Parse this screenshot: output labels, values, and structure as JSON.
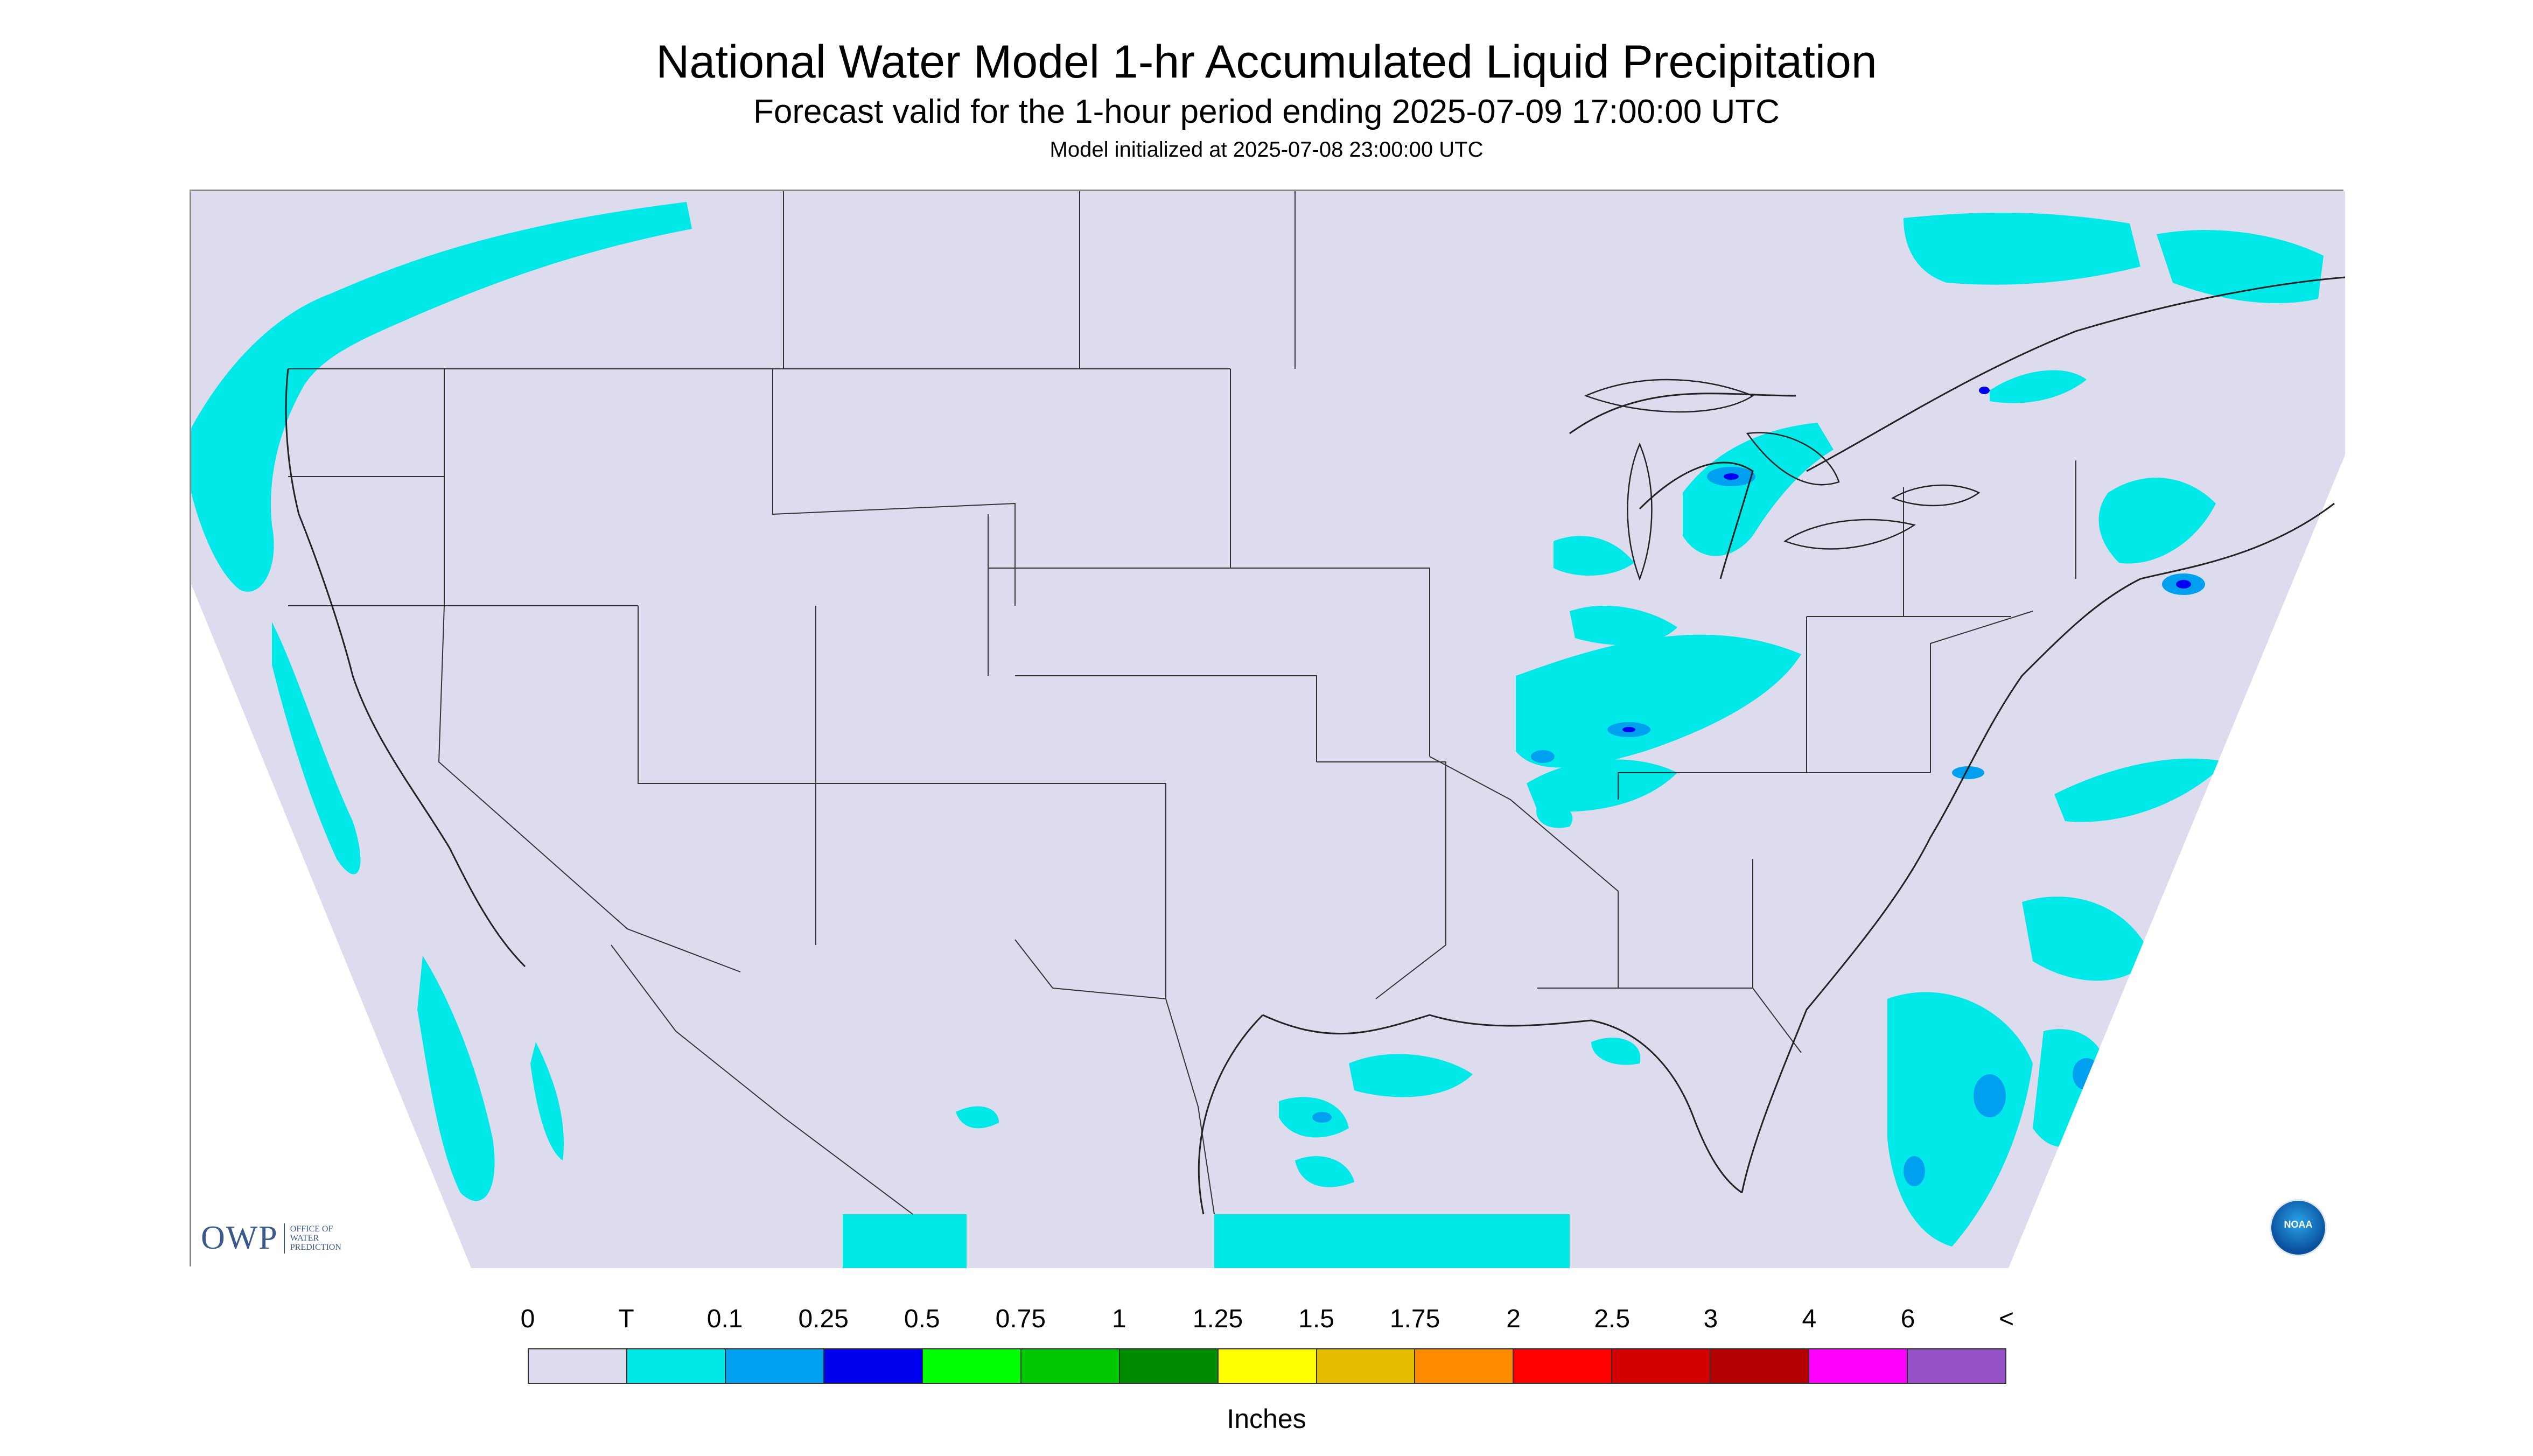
{
  "title": "National Water Model 1-hr Accumulated Liquid Precipitation",
  "subtitle": "Forecast valid for the 1-hour period ending 2025-07-09 17:00:00 UTC",
  "init_line": "Model initialized at 2025-07-08 23:00:00 UTC",
  "logos": {
    "owp_main": "OWP",
    "owp_small": "OFFICE OF WATER PREDICTION",
    "noaa": "NOAA"
  },
  "legend": {
    "units": "Inches",
    "labels": [
      "0",
      "T",
      "0.1",
      "0.25",
      "0.5",
      "0.75",
      "1",
      "1.25",
      "1.5",
      "1.75",
      "2",
      "2.5",
      "3",
      "4",
      "6",
      "<"
    ],
    "colors": [
      "#dcdcee",
      "#00e8e8",
      "#00a0f0",
      "#0000f0",
      "#00ff00",
      "#00c800",
      "#008c00",
      "#ffff00",
      "#e6be00",
      "#ff8c00",
      "#ff0000",
      "#d20000",
      "#b40000",
      "#ff00ff",
      "#9650c8"
    ]
  },
  "map_colors": {
    "land": "#dcdcee",
    "trace": "#00e8e8",
    "light": "#00a0f0",
    "moderate": "#0000f0",
    "outside": "#ffffff",
    "borders": "#333333"
  }
}
